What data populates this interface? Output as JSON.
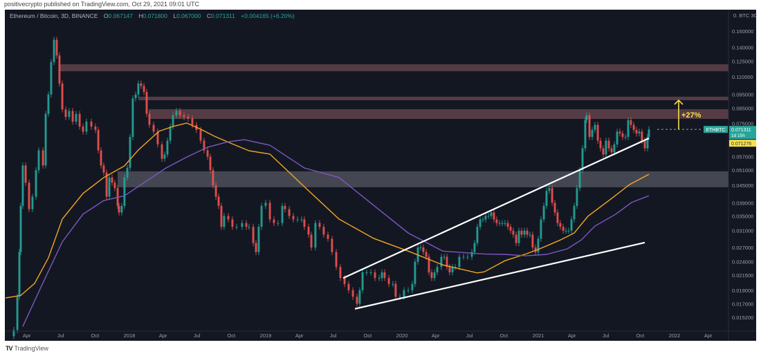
{
  "publisher_line": "positivecrypto published on TradingView.com, Oct 29, 2021 09:01 UTC",
  "legend": {
    "symbol": "Ethereum / Bitcoin, 3D, BINANCE",
    "open_label": "O",
    "open": "0.067147",
    "high_label": "H",
    "high": "0.071800",
    "low_label": "L",
    "low": "0.067000",
    "close_label": "C",
    "close": "0.071311",
    "change": "+0.004165 (+6.20%)"
  },
  "axis_currency": "0. BTC 30",
  "price_tags": {
    "symbol": "ETHBTC",
    "last_price": "0.071311",
    "countdown": "1d 15h",
    "ma_price": "0.071276"
  },
  "annotation": {
    "label": "+27%",
    "from_price": 0.0713,
    "to_price": 0.0906
  },
  "footer": {
    "logo": "TV",
    "brand": "TradingView"
  },
  "colors": {
    "background": "#131722",
    "up": "#26a69a",
    "down": "#ef5350",
    "ma_fast": "#f5a623",
    "ma_slow": "#7e57c2",
    "resistance_zone": "#5c3f48",
    "support_zone": "#4a4d57",
    "trendline": "#ffffff",
    "arrow": "#f7e04b",
    "tag_yellow": "#f7e04b"
  },
  "chart_data": {
    "type": "candlestick",
    "title": "Ethereum / Bitcoin, 3D, BINANCE",
    "y_scale": "log",
    "ylim": [
      0.0135,
      0.175
    ],
    "xlim": [
      2017.04,
      2022.35
    ],
    "grid": false,
    "y_ticks": [
      "0.160000",
      "0.140000",
      "0.125000",
      "0.110000",
      "0.095000",
      "0.085000",
      "0.075000",
      "0.057000",
      "0.051000",
      "0.045000",
      "0.039000",
      "0.035000",
      "0.031000",
      "0.027000",
      "0.024000",
      "0.021500",
      "0.019000",
      "0.017000",
      "0.015200"
    ],
    "x_ticks": [
      {
        "label": "Apr",
        "x": 2017.247
      },
      {
        "label": "Jul",
        "x": 2017.496
      },
      {
        "label": "Oct",
        "x": 2017.748
      },
      {
        "label": "2018",
        "x": 2018.0
      },
      {
        "label": "Apr",
        "x": 2018.247
      },
      {
        "label": "Jul",
        "x": 2018.496
      },
      {
        "label": "Oct",
        "x": 2018.748
      },
      {
        "label": "2019",
        "x": 2019.0
      },
      {
        "label": "Apr",
        "x": 2019.247
      },
      {
        "label": "Jul",
        "x": 2019.496
      },
      {
        "label": "Oct",
        "x": 2019.748
      },
      {
        "label": "2020",
        "x": 2020.0
      },
      {
        "label": "Apr",
        "x": 2020.247
      },
      {
        "label": "Jul",
        "x": 2020.496
      },
      {
        "label": "Oct",
        "x": 2020.748
      },
      {
        "label": "2021",
        "x": 2021.0
      },
      {
        "label": "Apr",
        "x": 2021.247
      },
      {
        "label": "Jul",
        "x": 2021.496
      },
      {
        "label": "Oct",
        "x": 2021.748
      },
      {
        "label": "2022",
        "x": 2022.0
      },
      {
        "label": "Apr",
        "x": 2022.247
      }
    ],
    "x": [
      2017.152,
      2017.178,
      2017.193,
      2017.203,
      2017.218,
      2017.239,
      2017.264,
      2017.289,
      2017.315,
      2017.335,
      2017.366,
      2017.386,
      2017.406,
      2017.426,
      2017.447,
      2017.467,
      2017.487,
      2017.508,
      2017.533,
      2017.558,
      2017.584,
      2017.609,
      2017.635,
      2017.66,
      2017.685,
      2017.721,
      2017.751,
      2017.772,
      2017.792,
      2017.812,
      2017.833,
      2017.853,
      2017.873,
      2017.893,
      2017.914,
      2017.924,
      2017.944,
      2017.964,
      2017.985,
      2018.005,
      2018.025,
      2018.046,
      2018.066,
      2018.086,
      2018.107,
      2018.127,
      2018.147,
      2018.178,
      2018.208,
      2018.239,
      2018.259,
      2018.279,
      2018.3,
      2018.32,
      2018.345,
      2018.371,
      2018.401,
      2018.431,
      2018.462,
      2018.492,
      2018.523,
      2018.548,
      2018.574,
      2018.594,
      2018.614,
      2018.635,
      2018.655,
      2018.675,
      2018.695,
      2018.726,
      2018.756,
      2018.787,
      2018.827,
      2018.858,
      2018.878,
      2018.909,
      2018.929,
      2018.949,
      2018.97,
      2019.0,
      2019.031,
      2019.061,
      2019.091,
      2019.122,
      2019.142,
      2019.173,
      2019.203,
      2019.234,
      2019.264,
      2019.284,
      2019.315,
      2019.335,
      2019.365,
      2019.396,
      2019.426,
      2019.457,
      2019.487,
      2019.518,
      2019.548,
      2019.579,
      2019.609,
      2019.64,
      2019.67,
      2019.69,
      2019.711,
      2019.741,
      2019.772,
      2019.802,
      2019.833,
      2019.853,
      2019.873,
      2019.904,
      2019.934,
      2019.954,
      2019.985,
      2020.015,
      2020.046,
      2020.076,
      2020.096,
      2020.117,
      2020.137,
      2020.157,
      2020.178,
      2020.198,
      2020.218,
      2020.239,
      2020.259,
      2020.289,
      2020.31,
      2020.33,
      2020.35,
      2020.371,
      2020.391,
      2020.421,
      2020.452,
      2020.482,
      2020.513,
      2020.533,
      2020.553,
      2020.574,
      2020.594,
      2020.614,
      2020.635,
      2020.655,
      2020.675,
      2020.695,
      2020.716,
      2020.736,
      2020.756,
      2020.777,
      2020.797,
      2020.817,
      2020.838,
      2020.858,
      2020.878,
      2020.899,
      2020.919,
      2020.939,
      2020.959,
      2020.98,
      2021.0,
      2021.02,
      2021.041,
      2021.061,
      2021.081,
      2021.102,
      2021.122,
      2021.142,
      2021.162,
      2021.183,
      2021.203,
      2021.223,
      2021.244,
      2021.264,
      2021.284,
      2021.305,
      2021.325,
      2021.345,
      2021.355,
      2021.376,
      2021.396,
      2021.416,
      2021.437,
      2021.457,
      2021.477,
      2021.497,
      2021.518,
      2021.538,
      2021.558,
      2021.579,
      2021.599,
      2021.619,
      2021.64,
      2021.66,
      2021.68,
      2021.701,
      2021.721,
      2021.741,
      2021.761,
      2021.782,
      2021.802,
      2021.812
    ],
    "close": [
      0.0137,
      0.018,
      0.026,
      0.038,
      0.053,
      0.046,
      0.037,
      0.041,
      0.051,
      0.06,
      0.053,
      0.081,
      0.095,
      0.124,
      0.149,
      0.131,
      0.104,
      0.084,
      0.079,
      0.083,
      0.076,
      0.081,
      0.073,
      0.07,
      0.076,
      0.073,
      0.071,
      0.06,
      0.053,
      0.05,
      0.041,
      0.048,
      0.046,
      0.044,
      0.038,
      0.036,
      0.038,
      0.048,
      0.052,
      0.067,
      0.092,
      0.095,
      0.104,
      0.102,
      0.097,
      0.081,
      0.074,
      0.07,
      0.063,
      0.056,
      0.058,
      0.065,
      0.073,
      0.08,
      0.083,
      0.08,
      0.079,
      0.078,
      0.074,
      0.071,
      0.065,
      0.06,
      0.057,
      0.051,
      0.045,
      0.041,
      0.038,
      0.032,
      0.035,
      0.034,
      0.032,
      0.032,
      0.033,
      0.032,
      0.032,
      0.028,
      0.026,
      0.032,
      0.038,
      0.039,
      0.034,
      0.033,
      0.033,
      0.038,
      0.037,
      0.035,
      0.034,
      0.034,
      0.034,
      0.032,
      0.03,
      0.027,
      0.033,
      0.032,
      0.03,
      0.029,
      0.026,
      0.023,
      0.021,
      0.02,
      0.019,
      0.018,
      0.017,
      0.019,
      0.022,
      0.022,
      0.022,
      0.021,
      0.021,
      0.022,
      0.021,
      0.02,
      0.02,
      0.018,
      0.018,
      0.019,
      0.019,
      0.02,
      0.024,
      0.027,
      0.027,
      0.026,
      0.025,
      0.022,
      0.021,
      0.022,
      0.023,
      0.025,
      0.025,
      0.023,
      0.022,
      0.023,
      0.023,
      0.025,
      0.025,
      0.025,
      0.026,
      0.028,
      0.032,
      0.034,
      0.034,
      0.035,
      0.035,
      0.036,
      0.034,
      0.033,
      0.033,
      0.033,
      0.033,
      0.032,
      0.031,
      0.03,
      0.028,
      0.031,
      0.03,
      0.031,
      0.03,
      0.03,
      0.027,
      0.026,
      0.029,
      0.034,
      0.038,
      0.043,
      0.044,
      0.039,
      0.036,
      0.033,
      0.032,
      0.031,
      0.031,
      0.031,
      0.034,
      0.038,
      0.044,
      0.051,
      0.061,
      0.077,
      0.08,
      0.067,
      0.071,
      0.074,
      0.065,
      0.061,
      0.058,
      0.065,
      0.061,
      0.059,
      0.063,
      0.07,
      0.069,
      0.067,
      0.067,
      0.077,
      0.074,
      0.071,
      0.069,
      0.07,
      0.065,
      0.061,
      0.067,
      0.0713
    ],
    "series": [
      {
        "name": "MA fast (orange)",
        "points": [
          [
            2017.051,
            0.0177
          ],
          [
            2017.203,
            0.0182
          ],
          [
            2017.305,
            0.0201
          ],
          [
            2017.406,
            0.0248
          ],
          [
            2017.508,
            0.0341
          ],
          [
            2017.66,
            0.0421
          ],
          [
            2017.812,
            0.048
          ],
          [
            2017.964,
            0.0528
          ],
          [
            2018.066,
            0.0602
          ],
          [
            2018.218,
            0.0702
          ],
          [
            2018.32,
            0.073
          ],
          [
            2018.421,
            0.0751
          ],
          [
            2018.523,
            0.0714
          ],
          [
            2018.625,
            0.0674
          ],
          [
            2018.741,
            0.0637
          ],
          [
            2018.878,
            0.0598
          ],
          [
            2019.031,
            0.0582
          ],
          [
            2019.284,
            0.0445
          ],
          [
            2019.538,
            0.0341
          ],
          [
            2019.792,
            0.0291
          ],
          [
            2020.046,
            0.0262
          ],
          [
            2020.3,
            0.0234
          ],
          [
            2020.553,
            0.0219
          ],
          [
            2020.604,
            0.0221
          ],
          [
            2020.756,
            0.0242
          ],
          [
            2020.909,
            0.0256
          ],
          [
            2021.01,
            0.0267
          ],
          [
            2021.162,
            0.0287
          ],
          [
            2021.264,
            0.0304
          ],
          [
            2021.365,
            0.0349
          ],
          [
            2021.518,
            0.0397
          ],
          [
            2021.67,
            0.0453
          ],
          [
            2021.812,
            0.0493
          ]
        ]
      },
      {
        "name": "MA slow (purple)",
        "points": [
          [
            2017.218,
            0.0141
          ],
          [
            2017.356,
            0.0197
          ],
          [
            2017.508,
            0.0283
          ],
          [
            2017.66,
            0.0355
          ],
          [
            2017.812,
            0.0397
          ],
          [
            2017.964,
            0.0413
          ],
          [
            2018.117,
            0.0463
          ],
          [
            2018.269,
            0.0519
          ],
          [
            2018.421,
            0.0568
          ],
          [
            2018.574,
            0.0616
          ],
          [
            2018.726,
            0.0644
          ],
          [
            2018.843,
            0.0655
          ],
          [
            2019.031,
            0.0626
          ],
          [
            2019.284,
            0.0519
          ],
          [
            2019.538,
            0.048
          ],
          [
            2019.792,
            0.0382
          ],
          [
            2020.046,
            0.0304
          ],
          [
            2020.3,
            0.0262
          ],
          [
            2020.604,
            0.0256
          ],
          [
            2020.756,
            0.0255
          ],
          [
            2020.909,
            0.0252
          ],
          [
            2021.061,
            0.0255
          ],
          [
            2021.213,
            0.0267
          ],
          [
            2021.315,
            0.0287
          ],
          [
            2021.416,
            0.0322
          ],
          [
            2021.569,
            0.0355
          ],
          [
            2021.685,
            0.0391
          ],
          [
            2021.812,
            0.0413
          ]
        ]
      }
    ],
    "zones": [
      {
        "name": "resistance-zone-1",
        "from_x": 2017.483,
        "top": 0.1218,
        "bottom": 0.115,
        "kind": "resistance"
      },
      {
        "name": "resistance-zone-2",
        "from_x": 2018.066,
        "top": 0.0933,
        "bottom": 0.0906,
        "kind": "resistance"
      },
      {
        "name": "resistance-zone-3",
        "from_x": 2018.142,
        "top": 0.0842,
        "bottom": 0.0777,
        "kind": "resistance"
      },
      {
        "name": "support-zone",
        "from_x": 2017.914,
        "top": 0.0505,
        "bottom": 0.0443,
        "kind": "support"
      }
    ],
    "trendlines": [
      {
        "name": "upper-trendline",
        "from": [
          2019.569,
          0.021
        ],
        "to": [
          2021.812,
          0.0663
        ]
      },
      {
        "name": "lower-trendline",
        "from": [
          2019.655,
          0.0163
        ],
        "to": [
          2021.782,
          0.0281
        ]
      }
    ]
  }
}
